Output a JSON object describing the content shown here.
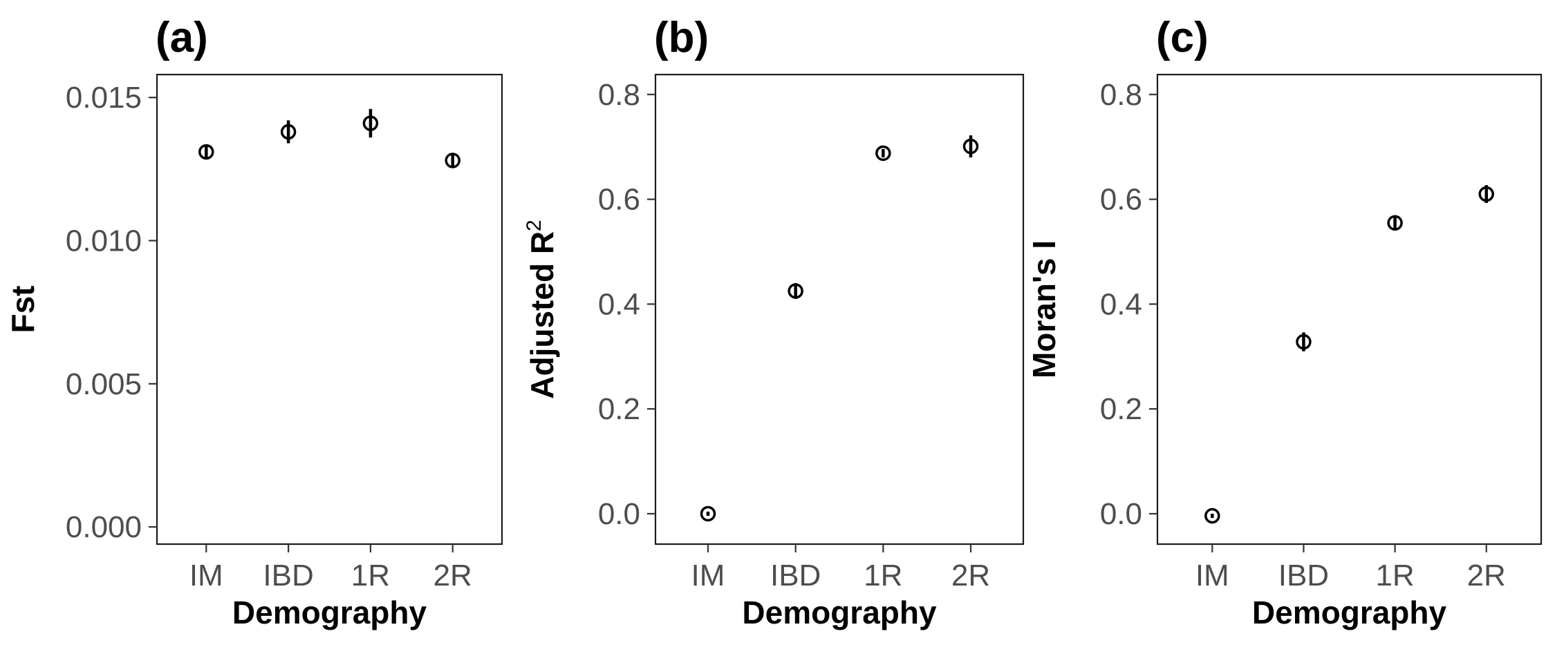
{
  "chart_data": [
    {
      "type": "scatter",
      "panel_label": "(a)",
      "xlabel": "Demography",
      "ylabel": "Fst",
      "ylabel_sup": "",
      "categories": [
        "IM",
        "IBD",
        "1R",
        "2R"
      ],
      "values": [
        0.0131,
        0.0138,
        0.0141,
        0.0128
      ],
      "error_low": [
        0.0129,
        0.0134,
        0.0136,
        0.0126
      ],
      "error_high": [
        0.0133,
        0.0142,
        0.0146,
        0.013
      ],
      "ylim": [
        -0.0006,
        0.0158
      ],
      "yticks": [
        0.0,
        0.005,
        0.01,
        0.015
      ],
      "ytick_labels": [
        "0.000",
        "0.005",
        "0.010",
        "0.015"
      ],
      "grid": false
    },
    {
      "type": "scatter",
      "panel_label": "(b)",
      "xlabel": "Demography",
      "ylabel": "Adjusted R",
      "ylabel_sup": "2",
      "categories": [
        "IM",
        "IBD",
        "1R",
        "2R"
      ],
      "values": [
        0.0,
        0.425,
        0.688,
        0.701
      ],
      "error_low": [
        -0.004,
        0.41,
        0.68,
        0.68
      ],
      "error_high": [
        0.004,
        0.44,
        0.696,
        0.722
      ],
      "ylim": [
        -0.058,
        0.838
      ],
      "yticks": [
        0.0,
        0.2,
        0.4,
        0.6,
        0.8
      ],
      "ytick_labels": [
        "0.0",
        "0.2",
        "0.4",
        "0.6",
        "0.8"
      ],
      "grid": false
    },
    {
      "type": "scatter",
      "panel_label": "(c)",
      "xlabel": "Demography",
      "ylabel": "Moran's I",
      "ylabel_sup": "",
      "categories": [
        "IM",
        "IBD",
        "1R",
        "2R"
      ],
      "values": [
        -0.004,
        0.328,
        0.555,
        0.61
      ],
      "error_low": [
        -0.008,
        0.31,
        0.543,
        0.593
      ],
      "error_high": [
        0.0,
        0.346,
        0.567,
        0.627
      ],
      "ylim": [
        -0.058,
        0.838
      ],
      "yticks": [
        0.0,
        0.2,
        0.4,
        0.6,
        0.8
      ],
      "ytick_labels": [
        "0.0",
        "0.2",
        "0.4",
        "0.6",
        "0.8"
      ],
      "grid": false
    }
  ]
}
